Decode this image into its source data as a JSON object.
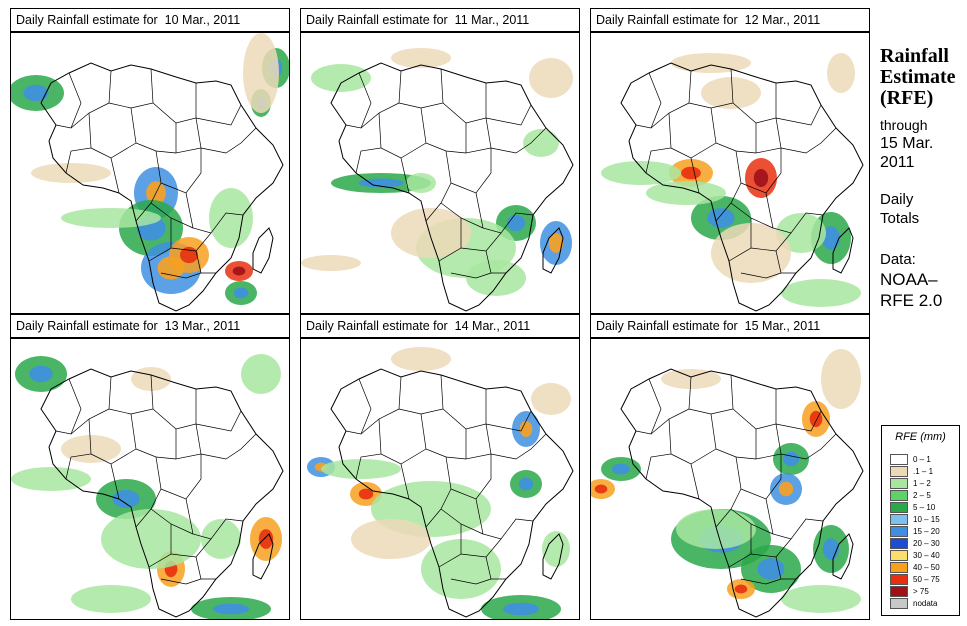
{
  "panel_title_prefix": "Daily Rainfall estimate for",
  "panels": [
    {
      "date": "10 Mar., 2011",
      "rain": [
        [
          145,
          160,
          22,
          26,
          4
        ],
        [
          140,
          195,
          32,
          28,
          3
        ],
        [
          160,
          235,
          30,
          26,
          4
        ],
        [
          178,
          222,
          20,
          18,
          5
        ],
        [
          228,
          238,
          14,
          10,
          6
        ],
        [
          230,
          260,
          16,
          12,
          3
        ],
        [
          190,
          300,
          50,
          10,
          4
        ],
        [
          40,
          300,
          40,
          6,
          3
        ],
        [
          25,
          60,
          28,
          18,
          3
        ],
        [
          265,
          35,
          14,
          20,
          3
        ],
        [
          250,
          70,
          10,
          14,
          3
        ],
        [
          100,
          185,
          50,
          10,
          2
        ],
        [
          220,
          185,
          22,
          30,
          2
        ],
        [
          60,
          140,
          40,
          10,
          1
        ],
        [
          250,
          40,
          18,
          40,
          1
        ]
      ]
    },
    {
      "date": "11 Mar., 2011",
      "rain": [
        [
          80,
          150,
          50,
          10,
          3
        ],
        [
          120,
          150,
          15,
          10,
          2
        ],
        [
          215,
          190,
          20,
          18,
          3
        ],
        [
          255,
          210,
          16,
          22,
          4
        ],
        [
          165,
          215,
          50,
          30,
          2
        ],
        [
          195,
          245,
          30,
          18,
          2
        ],
        [
          40,
          45,
          30,
          14,
          2
        ],
        [
          250,
          45,
          22,
          20,
          1
        ],
        [
          120,
          25,
          30,
          10,
          1
        ],
        [
          130,
          200,
          40,
          25,
          1
        ],
        [
          240,
          110,
          18,
          14,
          2
        ],
        [
          30,
          230,
          30,
          8,
          1
        ]
      ]
    },
    {
      "date": "12 Mar., 2011",
      "rain": [
        [
          100,
          140,
          22,
          14,
          5
        ],
        [
          170,
          145,
          16,
          20,
          6
        ],
        [
          130,
          185,
          30,
          22,
          3
        ],
        [
          95,
          160,
          40,
          12,
          2
        ],
        [
          240,
          205,
          20,
          26,
          3
        ],
        [
          210,
          200,
          25,
          20,
          2
        ],
        [
          230,
          260,
          40,
          14,
          2
        ],
        [
          120,
          30,
          40,
          10,
          1
        ],
        [
          160,
          220,
          40,
          30,
          1
        ],
        [
          50,
          140,
          40,
          12,
          2
        ],
        [
          250,
          40,
          14,
          20,
          1
        ],
        [
          140,
          60,
          30,
          16,
          1
        ]
      ]
    },
    {
      "date": "13 Mar., 2011",
      "rain": [
        [
          30,
          35,
          26,
          18,
          3
        ],
        [
          40,
          140,
          40,
          12,
          2
        ],
        [
          115,
          160,
          30,
          20,
          3
        ],
        [
          160,
          230,
          14,
          18,
          5
        ],
        [
          255,
          200,
          16,
          22,
          5
        ],
        [
          210,
          200,
          20,
          20,
          2
        ],
        [
          140,
          200,
          50,
          30,
          2
        ],
        [
          220,
          270,
          40,
          12,
          3
        ],
        [
          100,
          260,
          40,
          14,
          2
        ],
        [
          250,
          35,
          20,
          20,
          2
        ],
        [
          140,
          40,
          20,
          12,
          1
        ],
        [
          80,
          110,
          30,
          14,
          1
        ]
      ]
    },
    {
      "date": "14 Mar., 2011",
      "rain": [
        [
          65,
          155,
          16,
          12,
          5
        ],
        [
          20,
          128,
          14,
          10,
          4
        ],
        [
          225,
          90,
          14,
          18,
          4
        ],
        [
          225,
          145,
          16,
          14,
          3
        ],
        [
          130,
          170,
          60,
          28,
          2
        ],
        [
          160,
          230,
          40,
          30,
          2
        ],
        [
          90,
          200,
          40,
          20,
          1
        ],
        [
          220,
          270,
          40,
          14,
          3
        ],
        [
          120,
          20,
          30,
          12,
          1
        ],
        [
          250,
          60,
          20,
          16,
          1
        ],
        [
          255,
          210,
          14,
          18,
          2
        ],
        [
          60,
          130,
          40,
          10,
          2
        ]
      ]
    },
    {
      "date": "15 Mar., 2011",
      "rain": [
        [
          30,
          130,
          20,
          12,
          3
        ],
        [
          10,
          150,
          14,
          10,
          5
        ],
        [
          225,
          80,
          14,
          18,
          5
        ],
        [
          200,
          120,
          18,
          16,
          3
        ],
        [
          195,
          150,
          16,
          16,
          4
        ],
        [
          130,
          200,
          50,
          30,
          3
        ],
        [
          180,
          230,
          30,
          24,
          3
        ],
        [
          240,
          210,
          18,
          24,
          3
        ],
        [
          150,
          250,
          14,
          10,
          5
        ],
        [
          125,
          190,
          40,
          20,
          2
        ],
        [
          230,
          260,
          40,
          14,
          2
        ],
        [
          250,
          40,
          20,
          30,
          1
        ],
        [
          100,
          40,
          30,
          10,
          1
        ]
      ]
    }
  ],
  "side": {
    "title_lines": [
      "Rainfall",
      "Estimate",
      "(RFE)"
    ],
    "through_label": "through",
    "through_date_line1": "15 Mar.",
    "through_date_line2": "2011",
    "totals_line1": "Daily",
    "totals_line2": "Totals",
    "data_line1": "Data:",
    "data_line2": "NOAA–",
    "data_line3": "RFE 2.0"
  },
  "legend": {
    "title": "RFE (mm)",
    "items": [
      {
        "label": "0 – 1",
        "color": "#ffffff"
      },
      {
        "label": ".1 – 1",
        "color": "#ecd9b8"
      },
      {
        "label": "1 – 2",
        "color": "#a8e6a0"
      },
      {
        "label": "2 – 5",
        "color": "#5fd06a"
      },
      {
        "label": "5 – 10",
        "color": "#2aa84a"
      },
      {
        "label": "10 – 15",
        "color": "#7fc0ee"
      },
      {
        "label": "15 – 20",
        "color": "#3f8fe0"
      },
      {
        "label": "20 – 30",
        "color": "#1c4fd0"
      },
      {
        "label": "30 – 40",
        "color": "#f8e06a"
      },
      {
        "label": "40 – 50",
        "color": "#f8a020"
      },
      {
        "label": "50 – 75",
        "color": "#e83010"
      },
      {
        "label": "> 75",
        "color": "#a01018"
      },
      {
        "label": "nodata",
        "color": "#c8c8c8"
      }
    ]
  }
}
